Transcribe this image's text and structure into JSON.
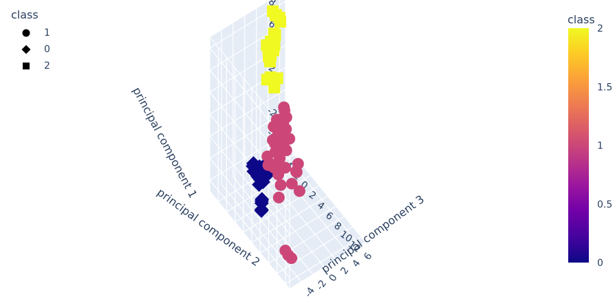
{
  "legend": {
    "title": "class",
    "items": [
      {
        "label": "1",
        "symbol": "circle"
      },
      {
        "label": "0",
        "symbol": "diamond"
      },
      {
        "label": "2",
        "symbol": "square"
      }
    ]
  },
  "colorbar": {
    "title": "class",
    "ticks": [
      "2",
      "1.5",
      "1",
      "0.5",
      "0"
    ],
    "colorscale": [
      "#f0f921",
      "#fdca26",
      "#fb9f3a",
      "#ed7953",
      "#d8576b",
      "#bd3786",
      "#9c179e",
      "#7201a8",
      "#46039f",
      "#0d0887"
    ]
  },
  "chart_data": {
    "type": "scatter",
    "dimensions": 3,
    "axes": {
      "x": {
        "label": "principal component 1",
        "ticks": [
          "-4",
          "-2",
          "0",
          "2",
          "4",
          "6",
          "8"
        ]
      },
      "y": {
        "label": "principal component 2",
        "ticks": [
          "-4",
          "-2",
          "0",
          "2",
          "4",
          "6",
          "8",
          "10",
          "12"
        ]
      },
      "z": {
        "label": "principal component 3",
        "ticks": [
          "-4",
          "-2",
          "0",
          "2",
          "4",
          "6"
        ]
      }
    },
    "series": [
      {
        "name": "1",
        "symbol": "circle",
        "color": "#cc4778",
        "points": [
          [
            0.4,
            1.9,
            1.0
          ],
          [
            0.9,
            1.8,
            0.6
          ],
          [
            1.5,
            1.4,
            0.4
          ],
          [
            0.8,
            2.2,
            0.1
          ],
          [
            1.8,
            2.4,
            0.8
          ],
          [
            0.2,
            0.8,
            0.5
          ],
          [
            1.2,
            0.9,
            1.1
          ],
          [
            2.4,
            1.4,
            0.3
          ],
          [
            0.5,
            2.5,
            0.9
          ],
          [
            2.0,
            2.0,
            1.2
          ],
          [
            1.1,
            1.5,
            -0.3
          ],
          [
            0.0,
            1.3,
            0.0
          ],
          [
            2.7,
            2.6,
            0.5
          ],
          [
            1.6,
            0.6,
            0.7
          ],
          [
            0.3,
            2.9,
            -0.4
          ],
          [
            2.2,
            1.0,
            -0.1
          ],
          [
            1.4,
            2.7,
            1.4
          ],
          [
            0.6,
            0.4,
            0.2
          ],
          [
            1.9,
            3.0,
            0.2
          ],
          [
            2.6,
            1.8,
            1.0
          ],
          [
            3.0,
            1.5,
            0.1
          ],
          [
            0.8,
            1.0,
            1.5
          ],
          [
            1.3,
            2.0,
            -0.6
          ],
          [
            2.1,
            2.8,
            -0.2
          ],
          [
            0.1,
            2.1,
            1.3
          ],
          [
            1.7,
            1.6,
            1.6
          ],
          [
            2.9,
            2.2,
            -0.3
          ],
          [
            4.0,
            3.0,
            0.4
          ],
          [
            5.2,
            3.6,
            -0.2
          ],
          [
            4.6,
            3.2,
            0.2
          ],
          [
            3.6,
            2.8,
            0.8
          ],
          [
            -0.5,
            0.5,
            -0.8
          ],
          [
            -1.0,
            1.0,
            -1.0
          ],
          [
            -0.4,
            2.6,
            -1.2
          ],
          [
            -1.6,
            0.6,
            0.6
          ],
          [
            -2.2,
            1.3,
            0.5
          ],
          [
            -1.2,
            2.4,
            0.9
          ],
          [
            -0.9,
            1.6,
            -0.4
          ],
          [
            -2.0,
            4.6,
            -1.8
          ],
          [
            -5.5,
            7.0,
            -2.4
          ],
          [
            -5.8,
            7.4,
            -2.2
          ],
          [
            -2.6,
            12.6,
            -5.4
          ],
          [
            -0.3,
            4.2,
            1.8
          ],
          [
            -1.4,
            3.6,
            2.0
          ],
          [
            -2.6,
            3.0,
            1.6
          ],
          [
            -2.8,
            2.0,
            0.4
          ],
          [
            -3.0,
            4.0,
            2.2
          ],
          [
            -1.8,
            2.9,
            2.4
          ]
        ]
      },
      {
        "name": "0",
        "symbol": "diamond",
        "color": "#0d0887",
        "points": [
          [
            -3.4,
            -1.6,
            -0.8
          ],
          [
            -3.0,
            -2.2,
            -1.2
          ],
          [
            -2.6,
            -1.8,
            -0.5
          ],
          [
            -3.8,
            -1.2,
            -1.0
          ],
          [
            -3.2,
            -2.6,
            -0.2
          ],
          [
            -2.8,
            -1.0,
            -1.4
          ],
          [
            -3.6,
            -2.0,
            0.0
          ],
          [
            -3.0,
            -1.4,
            -0.4
          ],
          [
            -2.9,
            -2.8,
            -0.9
          ],
          [
            -3.5,
            -0.8,
            -0.6
          ],
          [
            -2.4,
            -2.4,
            -1.1
          ],
          [
            -3.9,
            -1.9,
            -0.3
          ],
          [
            -5.2,
            -0.6,
            -1.0
          ],
          [
            -5.5,
            -0.2,
            -1.3
          ],
          [
            -5.0,
            -0.8,
            -0.8
          ],
          [
            -5.8,
            -0.5,
            -1.1
          ],
          [
            -4.8,
            -0.3,
            -1.2
          ],
          [
            -3.2,
            -1.0,
            0.4
          ],
          [
            -2.7,
            -1.7,
            0.2
          ]
        ]
      },
      {
        "name": "2",
        "symbol": "square",
        "color": "#f0f921",
        "points": [
          [
            6.6,
            -3.8,
            2.2
          ],
          [
            6.4,
            -3.6,
            3.2
          ],
          [
            7.0,
            -3.4,
            2.6
          ],
          [
            7.2,
            -3.9,
            3.5
          ],
          [
            6.8,
            -3.2,
            2.9
          ],
          [
            6.2,
            -3.7,
            2.4
          ],
          [
            6.9,
            -4.0,
            3.8
          ],
          [
            8.2,
            -4.6,
            4.4
          ],
          [
            8.6,
            -4.2,
            4.0
          ],
          [
            7.9,
            -3.9,
            4.6
          ],
          [
            8.8,
            -4.6,
            3.8
          ],
          [
            5.2,
            -4.2,
            2.8
          ],
          [
            5.0,
            -4.4,
            3.3
          ],
          [
            4.8,
            -4.0,
            2.9
          ],
          [
            5.4,
            -4.3,
            3.7
          ],
          [
            5.6,
            -4.6,
            4.1
          ],
          [
            4.0,
            -2.4,
            3.0
          ],
          [
            3.8,
            -2.6,
            2.6
          ],
          [
            4.2,
            -2.2,
            2.2
          ],
          [
            3.6,
            -2.8,
            2.8
          ],
          [
            4.4,
            -2.5,
            1.9
          ],
          [
            3.4,
            -2.3,
            2.4
          ],
          [
            4.1,
            -2.9,
            1.6
          ],
          [
            7.4,
            -5.2,
            5.4
          ]
        ]
      }
    ]
  }
}
